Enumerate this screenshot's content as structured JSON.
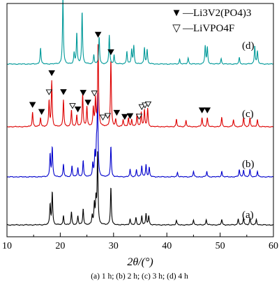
{
  "chart_data": {
    "type": "line",
    "xlabel": "2θ/(°)",
    "ylabel": "",
    "xlim": [
      10,
      60
    ],
    "x_ticks": [
      "10",
      "20",
      "30",
      "40",
      "50",
      "60"
    ],
    "legend": [
      {
        "symbol": "▼",
        "label": "—Li3V2(PO4)3",
        "marker": "filled-down-triangle"
      },
      {
        "symbol": "▽",
        "label": "—LiVPO4F",
        "marker": "open-down-triangle"
      }
    ],
    "series": [
      {
        "name": "(a)",
        "color": "#000000",
        "peaks": [
          [
            18.1,
            0.22
          ],
          [
            18.5,
            0.36
          ],
          [
            20.6,
            0.1
          ],
          [
            22.1,
            0.14
          ],
          [
            23.3,
            0.1
          ],
          [
            24.3,
            0.18
          ],
          [
            26.0,
            0.1
          ],
          [
            26.4,
            0.22
          ],
          [
            26.7,
            0.26
          ],
          [
            27.0,
            0.78
          ],
          [
            29.5,
            0.42
          ],
          [
            33.1,
            0.07
          ],
          [
            34.2,
            0.08
          ],
          [
            35.3,
            0.1
          ],
          [
            36.1,
            0.12
          ],
          [
            36.6,
            0.1
          ],
          [
            41.8,
            0.05
          ],
          [
            45.0,
            0.06
          ],
          [
            47.4,
            0.06
          ],
          [
            50.3,
            0.06
          ],
          [
            53.4,
            0.07
          ],
          [
            54.4,
            0.08
          ],
          [
            55.6,
            0.08
          ],
          [
            56.8,
            0.06
          ]
        ]
      },
      {
        "name": "(b)",
        "color": "#0000cc",
        "peaks": [
          [
            18.1,
            0.25
          ],
          [
            18.5,
            0.32
          ],
          [
            20.6,
            0.14
          ],
          [
            22.2,
            0.12
          ],
          [
            23.3,
            0.1
          ],
          [
            24.3,
            0.18
          ],
          [
            26.1,
            0.14
          ],
          [
            26.5,
            0.24
          ],
          [
            26.8,
            0.28
          ],
          [
            27.0,
            0.86
          ],
          [
            29.5,
            0.34
          ],
          [
            33.1,
            0.08
          ],
          [
            34.3,
            0.08
          ],
          [
            35.3,
            0.12
          ],
          [
            36.1,
            0.14
          ],
          [
            36.7,
            0.1
          ],
          [
            42.0,
            0.05
          ],
          [
            45.0,
            0.06
          ],
          [
            47.5,
            0.06
          ],
          [
            50.3,
            0.06
          ],
          [
            53.6,
            0.08
          ],
          [
            54.4,
            0.08
          ],
          [
            55.6,
            0.08
          ],
          [
            57.0,
            0.06
          ]
        ]
      },
      {
        "name": "(c)",
        "color": "#dd0000",
        "peaks": [
          [
            14.8,
            0.16
          ],
          [
            16.3,
            0.1
          ],
          [
            17.9,
            0.28
          ],
          [
            18.4,
            0.5
          ],
          [
            20.6,
            0.3
          ],
          [
            22.1,
            0.18
          ],
          [
            23.1,
            0.13
          ],
          [
            24.2,
            0.36
          ],
          [
            25.0,
            0.22
          ],
          [
            26.2,
            0.2
          ],
          [
            26.6,
            0.3
          ],
          [
            27.1,
            0.92
          ],
          [
            29.5,
            0.74
          ],
          [
            30.4,
            0.08
          ],
          [
            31.8,
            0.08
          ],
          [
            32.8,
            0.1
          ],
          [
            33.4,
            0.08
          ],
          [
            34.4,
            0.14
          ],
          [
            35.2,
            0.16
          ],
          [
            35.8,
            0.18
          ],
          [
            36.4,
            0.2
          ],
          [
            41.8,
            0.08
          ],
          [
            43.6,
            0.07
          ],
          [
            46.6,
            0.1
          ],
          [
            47.6,
            0.1
          ],
          [
            50.3,
            0.1
          ],
          [
            52.5,
            0.08
          ],
          [
            54.4,
            0.1
          ],
          [
            55.6,
            0.1
          ],
          [
            57.0,
            0.08
          ]
        ]
      },
      {
        "name": "(d)",
        "color": "#009999",
        "peaks": [
          [
            16.3,
            0.18
          ],
          [
            20.5,
            0.74
          ],
          [
            22.6,
            0.12
          ],
          [
            23.1,
            0.34
          ],
          [
            24.1,
            0.58
          ],
          [
            26.3,
            0.1
          ],
          [
            27.3,
            0.3
          ],
          [
            29.2,
            0.32
          ],
          [
            30.1,
            0.1
          ],
          [
            32.5,
            0.14
          ],
          [
            33.4,
            0.16
          ],
          [
            33.8,
            0.2
          ],
          [
            35.8,
            0.18
          ],
          [
            36.3,
            0.16
          ],
          [
            42.4,
            0.05
          ],
          [
            44.0,
            0.07
          ],
          [
            47.2,
            0.2
          ],
          [
            47.6,
            0.18
          ],
          [
            50.2,
            0.06
          ],
          [
            53.6,
            0.07
          ],
          [
            56.5,
            0.2
          ],
          [
            57.0,
            0.14
          ]
        ]
      }
    ],
    "markers": {
      "filled": [
        14.8,
        16.5,
        18.4,
        20.6,
        23.3,
        24.3,
        25.2,
        27.1,
        29.5,
        30.6,
        32.1,
        33.1,
        46.6,
        47.6
      ],
      "open": [
        17.9,
        22.3,
        26.4,
        28.0,
        28.9,
        34.8,
        35.3,
        35.9,
        36.5
      ]
    }
  },
  "caption": "(a) 1 h; (b) 2 h; (c) 3 h; (d) 4 h"
}
